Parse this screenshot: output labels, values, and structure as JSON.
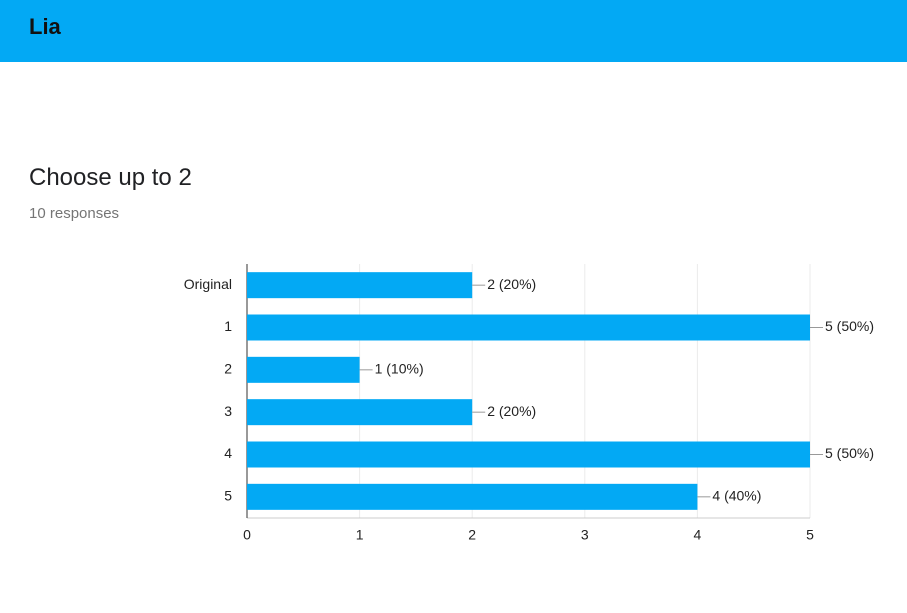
{
  "header": {
    "title": "Lia"
  },
  "question": {
    "title": "Choose up to 2",
    "responses": "10 responses"
  },
  "chart_data": {
    "type": "hbar",
    "categories": [
      "Original",
      "1",
      "2",
      "3",
      "4",
      "5"
    ],
    "values": [
      2,
      5,
      1,
      2,
      5,
      4
    ],
    "value_labels": [
      "2 (20%)",
      "5 (50%)",
      "1 (10%)",
      "2 (20%)",
      "5 (50%)",
      "4 (40%)"
    ],
    "color": "#03a9f4",
    "xlim": [
      0,
      5
    ],
    "xticks": [
      0,
      1,
      2,
      3,
      4,
      5
    ],
    "grid": true
  }
}
